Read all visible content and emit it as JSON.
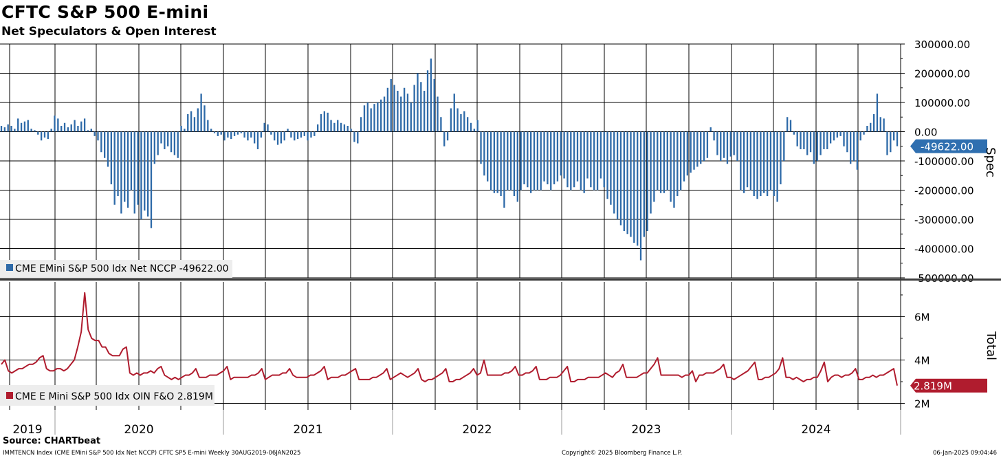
{
  "chart_data": {
    "type": "bar+line",
    "title": "CFTC S&P 500 E-mini",
    "subtitle": "Net Speculators & Open Interest",
    "x_range": [
      "2019-08-30",
      "2025-01-06"
    ],
    "x_years": [
      "2019",
      "2020",
      "2021",
      "2022",
      "2023",
      "2024"
    ],
    "top_panel": {
      "type": "bar",
      "axis_title": "Spec",
      "ylim": [
        -500000,
        300000
      ],
      "yticks": [
        "300000.00",
        "200000.00",
        "100000.00",
        "0.00",
        "-100000.00",
        "-200000.00",
        "-300000.00",
        "-400000.00",
        "-500000.00"
      ],
      "legend": "CME EMini S&P 500 Idx Net NCCP -49622.00",
      "last_value_label": "-49622.00",
      "series_name": "CME EMini S&P 500 Idx Net NCCP",
      "color": "#2e6aa8",
      "values": [
        20000,
        15000,
        25000,
        20000,
        10000,
        45000,
        30000,
        35000,
        40000,
        10000,
        5000,
        -10000,
        -30000,
        -20000,
        -25000,
        10000,
        55000,
        45000,
        20000,
        30000,
        15000,
        25000,
        40000,
        20000,
        35000,
        45000,
        5000,
        10000,
        -15000,
        -30000,
        -70000,
        -90000,
        -120000,
        -180000,
        -250000,
        -220000,
        -280000,
        -240000,
        -260000,
        -200000,
        -280000,
        -250000,
        -300000,
        -270000,
        -290000,
        -330000,
        -110000,
        -80000,
        -40000,
        -60000,
        -50000,
        -70000,
        -80000,
        -90000,
        20000,
        10000,
        60000,
        70000,
        50000,
        80000,
        130000,
        90000,
        40000,
        10000,
        -5000,
        -15000,
        -10000,
        -30000,
        -20000,
        -25000,
        -15000,
        -10000,
        -5000,
        -20000,
        -30000,
        -20000,
        -40000,
        -60000,
        -20000,
        30000,
        25000,
        -10000,
        -30000,
        -45000,
        -40000,
        -30000,
        10000,
        -20000,
        -30000,
        -25000,
        -20000,
        -15000,
        -30000,
        -20000,
        -15000,
        25000,
        60000,
        70000,
        65000,
        40000,
        30000,
        40000,
        30000,
        25000,
        20000,
        10000,
        -35000,
        -40000,
        50000,
        90000,
        100000,
        80000,
        95000,
        100000,
        110000,
        120000,
        150000,
        180000,
        160000,
        140000,
        120000,
        150000,
        130000,
        100000,
        160000,
        200000,
        170000,
        140000,
        210000,
        250000,
        180000,
        120000,
        50000,
        -50000,
        -30000,
        80000,
        130000,
        80000,
        60000,
        70000,
        50000,
        30000,
        10000,
        40000,
        -110000,
        -150000,
        -170000,
        -200000,
        -210000,
        -210000,
        -220000,
        -260000,
        -200000,
        -200000,
        -220000,
        -240000,
        -200000,
        -180000,
        -190000,
        -210000,
        -200000,
        -200000,
        -200000,
        -170000,
        -180000,
        -200000,
        -180000,
        -170000,
        -150000,
        -160000,
        -190000,
        -200000,
        -190000,
        -170000,
        -200000,
        -210000,
        -160000,
        -190000,
        -200000,
        -200000,
        -160000,
        -190000,
        -230000,
        -250000,
        -280000,
        -300000,
        -320000,
        -340000,
        -350000,
        -360000,
        -380000,
        -390000,
        -440000,
        -360000,
        -340000,
        -280000,
        -240000,
        -200000,
        -210000,
        -210000,
        -200000,
        -240000,
        -260000,
        -220000,
        -200000,
        -170000,
        -150000,
        -140000,
        -130000,
        -120000,
        -110000,
        -100000,
        -90000,
        15000,
        -30000,
        -80000,
        -100000,
        -90000,
        -110000,
        -85000,
        -80000,
        -100000,
        -200000,
        -210000,
        -190000,
        -200000,
        -220000,
        -230000,
        -220000,
        -210000,
        -220000,
        -200000,
        -220000,
        -240000,
        -180000,
        -100000,
        50000,
        40000,
        -10000,
        -50000,
        -60000,
        -60000,
        -80000,
        -70000,
        -110000,
        -100000,
        -80000,
        -60000,
        -60000,
        -40000,
        -30000,
        -20000,
        -15000,
        -50000,
        -70000,
        -110000,
        -100000,
        -130000,
        -30000,
        -10000,
        20000,
        30000,
        60000,
        130000,
        50000,
        45000,
        -80000,
        -70000,
        -30000,
        -49622
      ]
    },
    "bottom_panel": {
      "type": "line",
      "axis_title": "Total",
      "ylim": [
        1.7,
        7.6
      ],
      "yticks": [
        "6M",
        "4M",
        "2M"
      ],
      "legend": "CME E Mini S&P 500 Idx OIN F&O 2.819M",
      "last_value_label": "2.819M",
      "series_name": "CME E Mini S&P 500 Idx OIN F&O",
      "color": "#b01c2e",
      "values": [
        3.8,
        4.0,
        3.5,
        3.4,
        3.5,
        3.6,
        3.6,
        3.7,
        3.8,
        3.8,
        3.9,
        4.1,
        4.2,
        3.6,
        3.5,
        3.5,
        3.6,
        3.6,
        3.5,
        3.6,
        3.8,
        4.0,
        4.6,
        5.3,
        7.1,
        5.4,
        5.0,
        4.9,
        4.9,
        4.6,
        4.6,
        4.3,
        4.2,
        4.2,
        4.2,
        4.5,
        4.6,
        3.4,
        3.3,
        3.4,
        3.3,
        3.4,
        3.4,
        3.5,
        3.4,
        3.6,
        3.7,
        3.3,
        3.2,
        3.1,
        3.2,
        3.1,
        3.2,
        3.3,
        3.3,
        3.4,
        3.6,
        3.2,
        3.2,
        3.2,
        3.3,
        3.3,
        3.3,
        3.4,
        3.5,
        3.7,
        3.1,
        3.2,
        3.2,
        3.2,
        3.2,
        3.2,
        3.3,
        3.3,
        3.4,
        3.6,
        3.1,
        3.2,
        3.3,
        3.3,
        3.3,
        3.4,
        3.4,
        3.6,
        3.3,
        3.2,
        3.2,
        3.2,
        3.2,
        3.3,
        3.3,
        3.4,
        3.5,
        3.7,
        3.1,
        3.2,
        3.2,
        3.2,
        3.3,
        3.3,
        3.4,
        3.5,
        3.6,
        3.1,
        3.1,
        3.1,
        3.1,
        3.2,
        3.2,
        3.3,
        3.4,
        3.6,
        3.1,
        3.2,
        3.3,
        3.4,
        3.3,
        3.2,
        3.3,
        3.4,
        3.6,
        3.1,
        3.0,
        3.1,
        3.1,
        3.2,
        3.3,
        3.4,
        3.6,
        3.0,
        3.0,
        3.1,
        3.1,
        3.2,
        3.3,
        3.4,
        3.6,
        3.3,
        3.4,
        4.0,
        3.3,
        3.3,
        3.3,
        3.3,
        3.3,
        3.4,
        3.4,
        3.5,
        3.7,
        3.3,
        3.3,
        3.4,
        3.4,
        3.5,
        3.7,
        3.1,
        3.1,
        3.1,
        3.2,
        3.2,
        3.2,
        3.3,
        3.5,
        3.7,
        3.0,
        3.0,
        3.1,
        3.1,
        3.1,
        3.2,
        3.2,
        3.2,
        3.2,
        3.3,
        3.4,
        3.3,
        3.2,
        3.4,
        3.5,
        3.8,
        3.2,
        3.2,
        3.2,
        3.2,
        3.3,
        3.4,
        3.4,
        3.6,
        3.8,
        4.1,
        3.3,
        3.3,
        3.3,
        3.3,
        3.3,
        3.3,
        3.2,
        3.3,
        3.3,
        3.5,
        3.0,
        3.3,
        3.3,
        3.4,
        3.4,
        3.4,
        3.5,
        3.6,
        3.8,
        3.2,
        3.2,
        3.1,
        3.2,
        3.3,
        3.4,
        3.5,
        3.7,
        3.9,
        3.1,
        3.1,
        3.2,
        3.2,
        3.3,
        3.4,
        3.6,
        4.1,
        3.2,
        3.2,
        3.1,
        3.2,
        3.1,
        3.0,
        3.1,
        3.1,
        3.2,
        3.2,
        3.5,
        3.9,
        3.0,
        3.2,
        3.3,
        3.3,
        3.2,
        3.3,
        3.3,
        3.4,
        3.6,
        3.1,
        3.1,
        3.2,
        3.2,
        3.3,
        3.2,
        3.3,
        3.3,
        3.4,
        3.5,
        3.6,
        2.819
      ]
    }
  },
  "source_label": "Source: CHARTbeat",
  "footer": {
    "left": "IMMTENCN Index (CME EMini S&P 500 Idx Net NCCP) CFTC SP5 E-mini  Weekly 30AUG2019-06JAN2025",
    "center": "Copyright© 2025 Bloomberg Finance L.P.",
    "right": "06-Jan-2025 09:04:46"
  }
}
